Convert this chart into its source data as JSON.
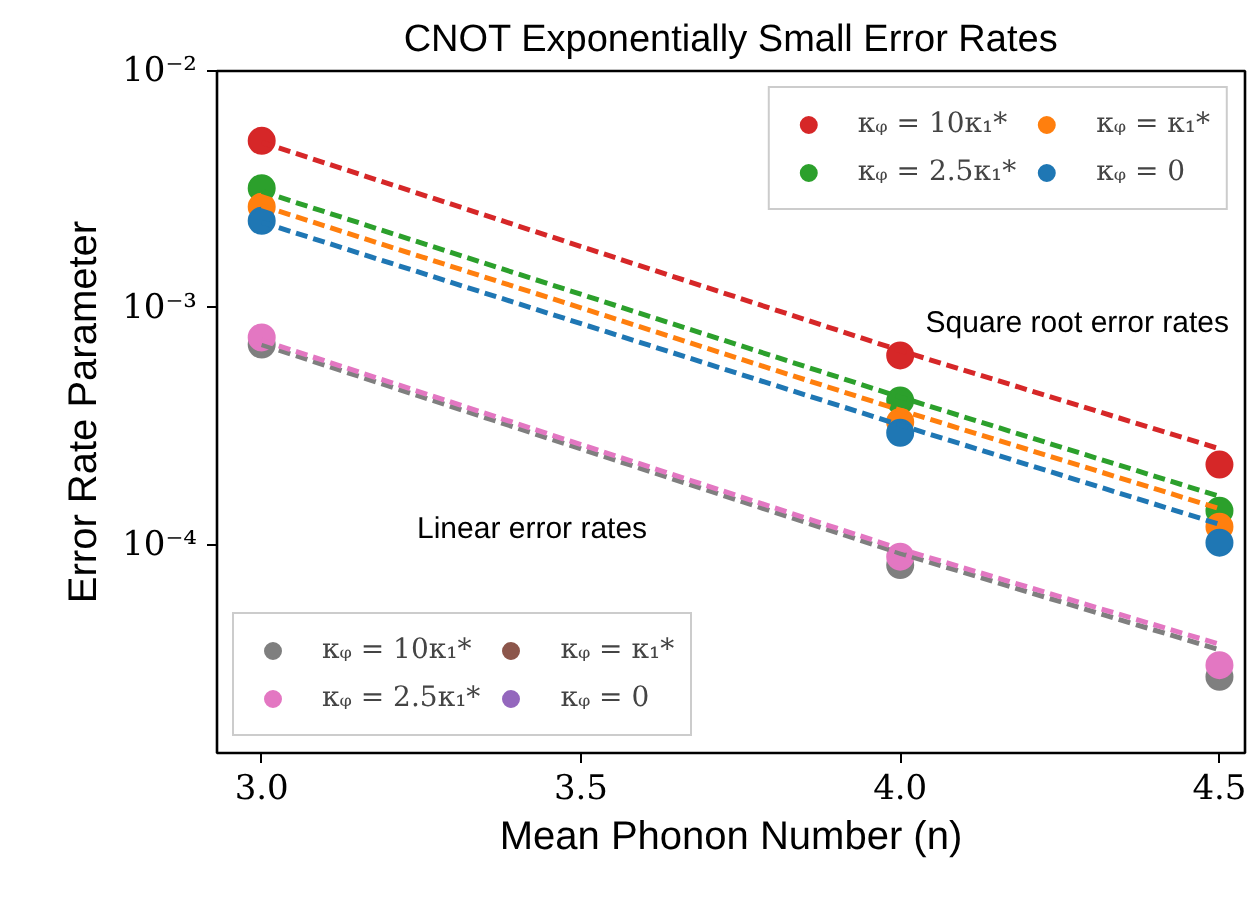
{
  "chart_data": {
    "type": "scatter",
    "title": "CNOT Exponentially Small Error Rates",
    "xlabel": "Mean Phonon Number (n)",
    "ylabel": "Error Rate Parameter",
    "x": [
      3.0,
      4.0,
      4.5
    ],
    "series": [
      {
        "name": "κᵩ = 10κ₁*",
        "color": "#d62728",
        "values": [
          0.00507,
          0.00063,
          0.000218
        ]
      },
      {
        "name": "κᵩ = 2.5κ₁*",
        "color": "#2ca02c",
        "values": [
          0.0032,
          0.000406,
          0.000139
        ]
      },
      {
        "name": "κᵩ = κ₁*",
        "color": "#ff7f0e",
        "values": [
          0.00267,
          0.00033,
          0.000119
        ]
      },
      {
        "name": "κᵩ = 0",
        "color": "#1f77b4",
        "values": [
          0.00233,
          0.000297,
          0.000102
        ]
      },
      {
        "name": "κᵩ = 10κ₁*",
        "color": "#7f7f7f",
        "values": [
          0.0007,
          8.2e-05,
          2.77e-05
        ]
      },
      {
        "name": "κᵩ = 2.5κ₁*",
        "color": "#e377c2",
        "values": [
          0.00075,
          8.9e-05,
          3.1e-05
        ]
      },
      {
        "name": "κᵩ = κ₁*",
        "color": "#8c564b",
        "values": [
          null,
          null,
          null
        ]
      },
      {
        "name": "κᵩ = 0",
        "color": "#9467bd",
        "values": [
          null,
          null,
          null
        ]
      },
      {
        "type": "line",
        "line_style": "dashed",
        "marker": "none",
        "color": "#d62728",
        "x": [
          3.0,
          4.0,
          4.5
        ],
        "values": [
          0.005,
          0.00066,
          0.000254
        ]
      },
      {
        "type": "line",
        "line_style": "dashed",
        "marker": "none",
        "color": "#2ca02c",
        "x": [
          3.0,
          4.0,
          4.5
        ],
        "values": [
          0.0031,
          0.00042,
          0.00016
        ]
      },
      {
        "type": "line",
        "line_style": "dashed",
        "marker": "none",
        "color": "#ff7f0e",
        "x": [
          3.0,
          4.0,
          4.5
        ],
        "values": [
          0.0027,
          0.00037,
          0.000142
        ]
      },
      {
        "type": "line",
        "line_style": "dashed",
        "marker": "none",
        "color": "#1f77b4",
        "x": [
          3.0,
          4.0,
          4.5
        ],
        "values": [
          0.0023,
          0.00032,
          0.000122
        ]
      },
      {
        "type": "line",
        "line_style": "dashed",
        "marker": "none",
        "color": "#7f7f7f",
        "x": [
          3.0,
          4.0,
          4.5
        ],
        "values": [
          0.0007,
          9.2e-05,
          3.6e-05
        ]
      },
      {
        "type": "line",
        "line_style": "dashed",
        "marker": "none",
        "color": "#e377c2",
        "x": [
          3.0,
          4.0,
          4.5
        ],
        "values": [
          0.00073,
          9.6e-05,
          3.8e-05
        ]
      }
    ],
    "annotations": [
      "Square root error rates",
      "Linear error rates"
    ],
    "log": "y",
    "marker": "circle",
    "grid": false,
    "legend": [
      "top right",
      "bottom left"
    ],
    "xlim": [
      2.93,
      4.54
    ],
    "xticks": [
      {
        "value": 3,
        "label": "3.0"
      },
      3.5,
      {
        "value": 4,
        "label": "4.0"
      },
      4.5
    ],
    "ylim": [
      1.32e-05,
      0.01
    ],
    "yticks": [
      {
        "value": 0.01,
        "label": "10⁻²"
      },
      {
        "value": 0.001,
        "label": "10⁻³"
      },
      {
        "value": 0.0001,
        "label": "10⁻⁴"
      }
    ]
  }
}
